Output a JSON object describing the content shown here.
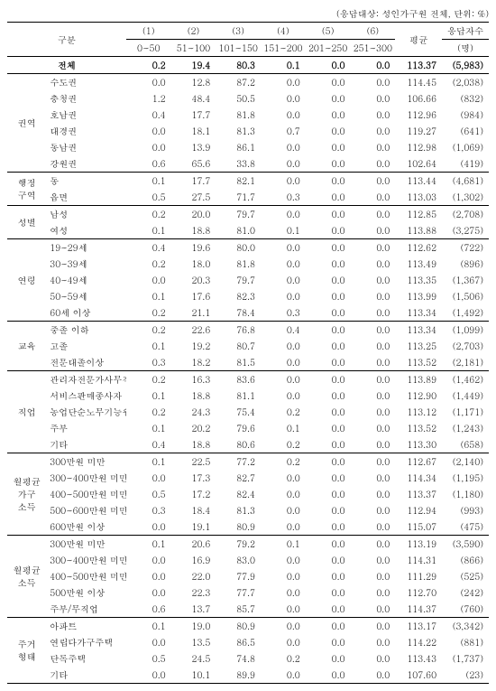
{
  "note": "(응답대상: 성인가구원 전체, 단위: %)",
  "header": {
    "rowLabel": "구분",
    "cols": [
      "(1)",
      "(2)",
      "(3)",
      "(4)",
      "(5)",
      "(6)"
    ],
    "ranges": [
      "0~50",
      "51~100",
      "101~150",
      "151~200",
      "201~250",
      "251~300"
    ],
    "avg": "평균",
    "cnt1": "응답자수",
    "cnt2": "(명)"
  },
  "total": {
    "label": "전체",
    "v": [
      "0.2",
      "19.4",
      "80.3",
      "0.1",
      "0.0",
      "0.0",
      "113.37",
      "(5,983)"
    ]
  },
  "groups": [
    {
      "cat": "권역",
      "rows": [
        {
          "l": "수도권",
          "v": [
            "0.0",
            "12.8",
            "87.2",
            "0.0",
            "0.0",
            "0.0",
            "114.45",
            "(2,038)"
          ]
        },
        {
          "l": "충청권",
          "v": [
            "1.2",
            "48.4",
            "50.5",
            "0.0",
            "0.0",
            "0.0",
            "106.66",
            "(832)"
          ]
        },
        {
          "l": "호남권",
          "v": [
            "0.4",
            "17.7",
            "81.8",
            "0.0",
            "0.0",
            "0.0",
            "112.96",
            "(984)"
          ]
        },
        {
          "l": "대경권",
          "v": [
            "0.0",
            "18.1",
            "81.3",
            "0.7",
            "0.0",
            "0.0",
            "119.27",
            "(641)"
          ]
        },
        {
          "l": "동남권",
          "v": [
            "0.0",
            "13.9",
            "86.1",
            "0.0",
            "0.0",
            "0.0",
            "112.98",
            "(1,069)"
          ]
        },
        {
          "l": "강원권",
          "v": [
            "0.6",
            "65.6",
            "33.8",
            "0.0",
            "0.0",
            "0.0",
            "102.64",
            "(419)"
          ]
        }
      ]
    },
    {
      "cat": "행정\n구역",
      "rows": [
        {
          "l": "동",
          "v": [
            "0.1",
            "17.7",
            "82.1",
            "0.0",
            "0.0",
            "0.0",
            "113.44",
            "(4,681)"
          ]
        },
        {
          "l": "읍면",
          "v": [
            "0.5",
            "27.5",
            "71.7",
            "0.3",
            "0.0",
            "0.0",
            "113.03",
            "(1,302)"
          ]
        }
      ]
    },
    {
      "cat": "성별",
      "rows": [
        {
          "l": "남성",
          "v": [
            "0.2",
            "20.0",
            "79.7",
            "0.0",
            "0.0",
            "0.0",
            "112.85",
            "(2,708)"
          ]
        },
        {
          "l": "여성",
          "v": [
            "0.1",
            "18.8",
            "81.0",
            "0.1",
            "0.0",
            "0.0",
            "113.88",
            "(3,275)"
          ]
        }
      ]
    },
    {
      "cat": "연령",
      "rows": [
        {
          "l": "19~29세",
          "v": [
            "0.4",
            "19.6",
            "80.0",
            "0.0",
            "0.0",
            "0.0",
            "112.62",
            "(722)"
          ]
        },
        {
          "l": "30~39세",
          "v": [
            "0.2",
            "18.0",
            "81.8",
            "0.0",
            "0.0",
            "0.0",
            "113.49",
            "(896)"
          ]
        },
        {
          "l": "40~49세",
          "v": [
            "0.0",
            "20.3",
            "79.7",
            "0.0",
            "0.0",
            "0.0",
            "113.35",
            "(1,367)"
          ]
        },
        {
          "l": "50~59세",
          "v": [
            "0.1",
            "17.6",
            "82.3",
            "0.0",
            "0.0",
            "0.0",
            "113.99",
            "(1,506)"
          ]
        },
        {
          "l": "60세 이상",
          "v": [
            "0.2",
            "21.1",
            "78.4",
            "0.3",
            "0.0",
            "0.0",
            "113.34",
            "(1,492)"
          ]
        }
      ]
    },
    {
      "cat": "교육",
      "rows": [
        {
          "l": "중졸 이하",
          "v": [
            "0.2",
            "22.6",
            "76.8",
            "0.4",
            "0.0",
            "0.0",
            "113.34",
            "(1,099)"
          ]
        },
        {
          "l": "고졸",
          "v": [
            "0.1",
            "19.2",
            "80.7",
            "0.0",
            "0.0",
            "0.0",
            "113.25",
            "(2,703)"
          ]
        },
        {
          "l": "전문대졸이상",
          "v": [
            "0.3",
            "18.2",
            "81.5",
            "0.0",
            "0.0",
            "0.0",
            "113.52",
            "(2,181)"
          ]
        }
      ]
    },
    {
      "cat": "직업",
      "rows": [
        {
          "l": "관리자전문가사무직",
          "v": [
            "0.2",
            "16.3",
            "83.6",
            "0.0",
            "0.0",
            "0.0",
            "113.89",
            "(1,462)"
          ]
        },
        {
          "l": "서비스판매종사자",
          "v": [
            "0.1",
            "18.8",
            "81.1",
            "0.0",
            "0.0",
            "0.0",
            "112.90",
            "(1,449)"
          ]
        },
        {
          "l": "농업단순노무기능원등",
          "v": [
            "0.2",
            "24.3",
            "75.4",
            "0.2",
            "0.0",
            "0.0",
            "113.12",
            "(1,171)"
          ]
        },
        {
          "l": "주부",
          "v": [
            "0.1",
            "20.2",
            "79.6",
            "0.1",
            "0.0",
            "0.0",
            "113.52",
            "(1,243)"
          ]
        },
        {
          "l": "기타",
          "v": [
            "0.4",
            "18.8",
            "80.6",
            "0.2",
            "0.0",
            "0.0",
            "113.30",
            "(658)"
          ]
        }
      ]
    },
    {
      "cat": "월평균\n가구\n소득",
      "rows": [
        {
          "l": "300만원 미만",
          "v": [
            "0.1",
            "22.5",
            "77.2",
            "0.2",
            "0.0",
            "0.0",
            "112.67",
            "(2,140)"
          ]
        },
        {
          "l": "300~400만원 미만",
          "v": [
            "0.0",
            "17.3",
            "82.7",
            "0.0",
            "0.0",
            "0.0",
            "114.34",
            "(1,195)"
          ]
        },
        {
          "l": "400~500만원 미만",
          "v": [
            "0.5",
            "17.2",
            "82.4",
            "0.0",
            "0.0",
            "0.0",
            "113.37",
            "(1,180)"
          ]
        },
        {
          "l": "500~600만원 미만",
          "v": [
            "0.3",
            "18.4",
            "81.3",
            "0.0",
            "0.0",
            "0.0",
            "112.94",
            "(993)"
          ]
        },
        {
          "l": "600만원 이상",
          "v": [
            "0.0",
            "19.1",
            "80.9",
            "0.0",
            "0.0",
            "0.0",
            "115.07",
            "(475)"
          ]
        }
      ]
    },
    {
      "cat": "월평균\n소득",
      "rows": [
        {
          "l": "300만원 미만",
          "v": [
            "0.1",
            "20.6",
            "79.2",
            "0.1",
            "0.0",
            "0.0",
            "113.19",
            "(3,590)"
          ]
        },
        {
          "l": "300~400만원 미만",
          "v": [
            "0.0",
            "16.9",
            "83.0",
            "0.0",
            "0.0",
            "0.0",
            "114.31",
            "(866)"
          ]
        },
        {
          "l": "400~500만원 미만",
          "v": [
            "0.0",
            "22.0",
            "77.9",
            "0.0",
            "0.0",
            "0.0",
            "111.29",
            "(525)"
          ]
        },
        {
          "l": "500만원 이상",
          "v": [
            "0.0",
            "22.3",
            "77.7",
            "0.0",
            "0.0",
            "0.0",
            "112.70",
            "(242)"
          ]
        },
        {
          "l": "주부/무직업",
          "v": [
            "0.6",
            "13.7",
            "85.7",
            "0.0",
            "0.0",
            "0.0",
            "114.37",
            "(760)"
          ]
        }
      ]
    },
    {
      "cat": "주거\n형태",
      "rows": [
        {
          "l": "아파트",
          "v": [
            "0.1",
            "19.0",
            "80.9",
            "0.0",
            "0.0",
            "0.0",
            "113.17",
            "(3,342)"
          ]
        },
        {
          "l": "연립다가구주택",
          "v": [
            "0.0",
            "13.5",
            "86.5",
            "0.0",
            "0.0",
            "0.0",
            "114.22",
            "(881)"
          ]
        },
        {
          "l": "단독주택",
          "v": [
            "0.5",
            "24.5",
            "74.8",
            "0.2",
            "0.0",
            "0.0",
            "113.43",
            "(1,737)"
          ]
        },
        {
          "l": "기타",
          "v": [
            "0.0",
            "10.1",
            "89.9",
            "0.0",
            "0.0",
            "0.0",
            "107.60",
            "(23)"
          ]
        }
      ]
    }
  ]
}
